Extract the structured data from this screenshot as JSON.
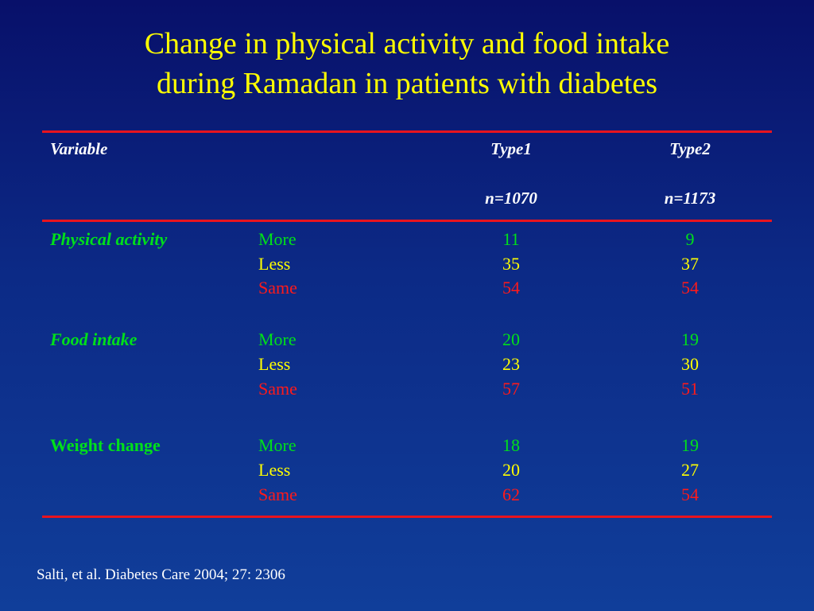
{
  "title": {
    "line1": "Change in physical activity and food intake",
    "line2": "during Ramadan in patients with diabetes"
  },
  "table": {
    "header": {
      "variable": "Variable",
      "type1": "Type1",
      "type2": "Type2",
      "type1_n": "n=1070",
      "type2_n": "n=1173"
    },
    "groups": [
      {
        "name": "Physical activity",
        "rows": [
          {
            "label": "More",
            "type1": "11",
            "type2": "9"
          },
          {
            "label": "Less",
            "type1": "35",
            "type2": "37"
          },
          {
            "label": "Same",
            "type1": "54",
            "type2": "54"
          }
        ]
      },
      {
        "name": "Food intake",
        "rows": [
          {
            "label": "More",
            "type1": "20",
            "type2": "19"
          },
          {
            "label": "Less",
            "type1": "23",
            "type2": "30"
          },
          {
            "label": "Same",
            "type1": "57",
            "type2": "51"
          }
        ]
      },
      {
        "name": "Weight change",
        "rows": [
          {
            "label": "More",
            "type1": "18",
            "type2": "19"
          },
          {
            "label": "Less",
            "type1": "20",
            "type2": "27"
          },
          {
            "label": "Same",
            "type1": "62",
            "type2": "54"
          }
        ]
      }
    ]
  },
  "colors": {
    "title": "#ffff00",
    "rule": "#e8141e",
    "more": "#00e01a",
    "less": "#ffff00",
    "same": "#ff1a1a",
    "variable_name": "#00e01a"
  },
  "source": "Salti, et al. Diabetes Care 2004; 27: 2306"
}
